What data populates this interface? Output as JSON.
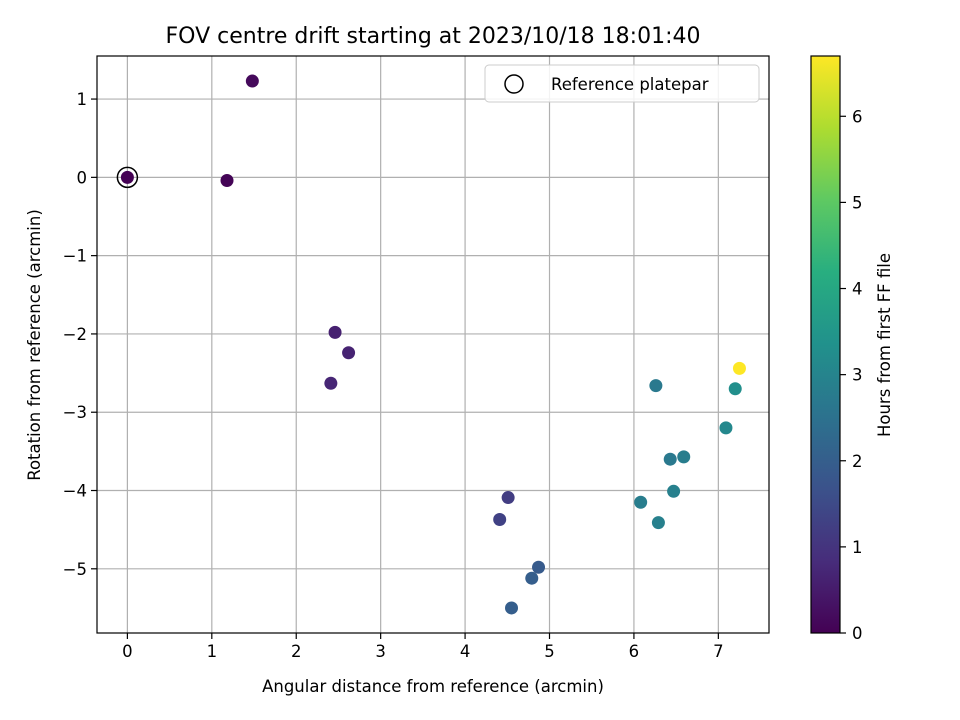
{
  "chart_data": {
    "type": "scatter",
    "title": "FOV centre drift starting at 2023/10/18 18:01:40",
    "xlabel": "Angular distance from reference (arcmin)",
    "ylabel": "Rotation from reference (arcmin)",
    "xlim": [
      -0.36,
      7.6
    ],
    "ylim": [
      -5.82,
      1.55
    ],
    "xticks": [
      0,
      1,
      2,
      3,
      4,
      5,
      6,
      7
    ],
    "yticks": [
      1,
      0,
      -1,
      -2,
      -3,
      -4,
      -5
    ],
    "ytick_labels": [
      "1",
      "0",
      "−1",
      "−2",
      "−3",
      "−4",
      "−5"
    ],
    "grid": true,
    "legend": {
      "placement": "top-right",
      "entries": [
        "Reference platepar"
      ]
    },
    "reference_point": {
      "x": 0,
      "y": 0
    },
    "colorbar": {
      "label": "Hours from first FF file",
      "range": [
        0,
        6.7
      ],
      "ticks": [
        0,
        1,
        2,
        3,
        4,
        5,
        6
      ],
      "colormap": "viridis"
    },
    "points": [
      {
        "x": 0.0,
        "y": 0.0,
        "c": 0.0
      },
      {
        "x": 1.18,
        "y": -0.04,
        "c": 0.05
      },
      {
        "x": 1.48,
        "y": 1.23,
        "c": 0.15
      },
      {
        "x": 2.46,
        "y": -1.98,
        "c": 0.6
      },
      {
        "x": 2.62,
        "y": -2.24,
        "c": 0.65
      },
      {
        "x": 2.41,
        "y": -2.63,
        "c": 0.7
      },
      {
        "x": 4.51,
        "y": -4.09,
        "c": 1.2
      },
      {
        "x": 4.41,
        "y": -4.37,
        "c": 1.3
      },
      {
        "x": 4.87,
        "y": -4.98,
        "c": 1.9
      },
      {
        "x": 4.79,
        "y": -5.12,
        "c": 2.0
      },
      {
        "x": 4.55,
        "y": -5.5,
        "c": 2.0
      },
      {
        "x": 6.26,
        "y": -2.66,
        "c": 2.7
      },
      {
        "x": 6.43,
        "y": -3.6,
        "c": 2.7
      },
      {
        "x": 6.59,
        "y": -3.57,
        "c": 2.8
      },
      {
        "x": 6.08,
        "y": -4.15,
        "c": 2.8
      },
      {
        "x": 6.47,
        "y": -4.01,
        "c": 2.9
      },
      {
        "x": 6.29,
        "y": -4.41,
        "c": 2.9
      },
      {
        "x": 7.09,
        "y": -3.2,
        "c": 3.1
      },
      {
        "x": 7.2,
        "y": -2.7,
        "c": 3.3
      },
      {
        "x": 7.25,
        "y": -2.44,
        "c": 6.7
      }
    ]
  }
}
